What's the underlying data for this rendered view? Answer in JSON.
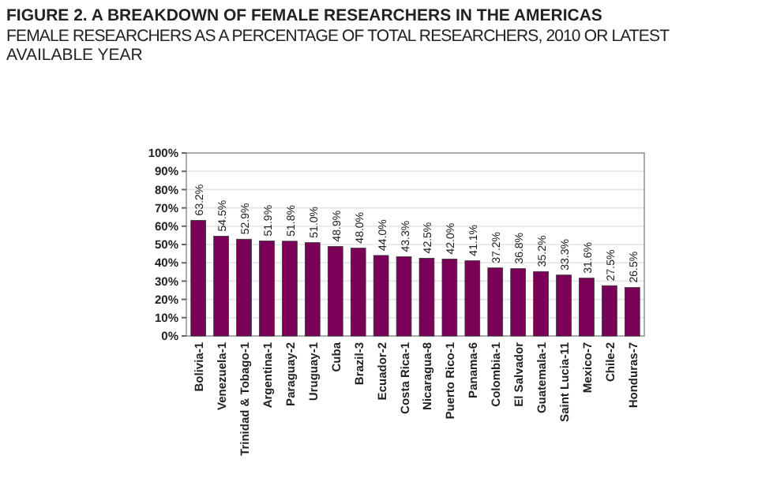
{
  "chart_data": {
    "type": "bar",
    "title": "FIGURE 2.  A BREAKDOWN OF FEMALE RESEARCHERS IN THE AMERICAS",
    "subtitle": "FEMALE RESEARCHERS AS A PERCENTAGE OF TOTAL RESEARCHERS, 2010 OR LATEST AVAILABLE YEAR",
    "categories": [
      "Bolivia-1",
      "Venezuela-1",
      "Trinidad & Tobago-1",
      "Argentina-1",
      "Paraguay-2",
      "Uruguay-1",
      "Cuba",
      "Brazil-3",
      "Ecuador-2",
      "Costa Rica-1",
      "Nicaragua-8",
      "Puerto Rico-1",
      "Panama-6",
      "Colombia-1",
      "El Salvador",
      "Guatemala-1",
      "Saint Lucia-11",
      "Mexico-7",
      "Chile-2",
      "Honduras-7"
    ],
    "values": [
      63.2,
      54.5,
      52.9,
      51.9,
      51.8,
      51.0,
      48.9,
      48.0,
      44.0,
      43.3,
      42.5,
      42.0,
      41.1,
      37.2,
      36.8,
      35.2,
      33.3,
      31.6,
      27.5,
      26.5
    ],
    "value_labels": [
      "63.2%",
      "54.5%",
      "52.9%",
      "51.9%",
      "51.8%",
      "51.0%",
      "48.9%",
      "48.0%",
      "44.0%",
      "43.3%",
      "42.5%",
      "42.0%",
      "41.1%",
      "37.2%",
      "36.8%",
      "35.2%",
      "33.3%",
      "31.6%",
      "27.5%",
      "26.5%"
    ],
    "color": "#7a0058",
    "ylim": [
      0,
      100
    ],
    "yticks": [
      {
        "value": 0,
        "label": "0%"
      },
      {
        "value": 10,
        "label": "10%"
      },
      {
        "value": 20,
        "label": "20%"
      },
      {
        "value": 30,
        "label": "30%"
      },
      {
        "value": 40,
        "label": "40%"
      },
      {
        "value": 50,
        "label": "50%"
      },
      {
        "value": 60,
        "label": "60%"
      },
      {
        "value": 70,
        "label": "70%"
      },
      {
        "value": 80,
        "label": "80%"
      },
      {
        "value": 90,
        "label": "90%"
      },
      {
        "value": 100,
        "label": "100%"
      }
    ],
    "grid": "y"
  }
}
